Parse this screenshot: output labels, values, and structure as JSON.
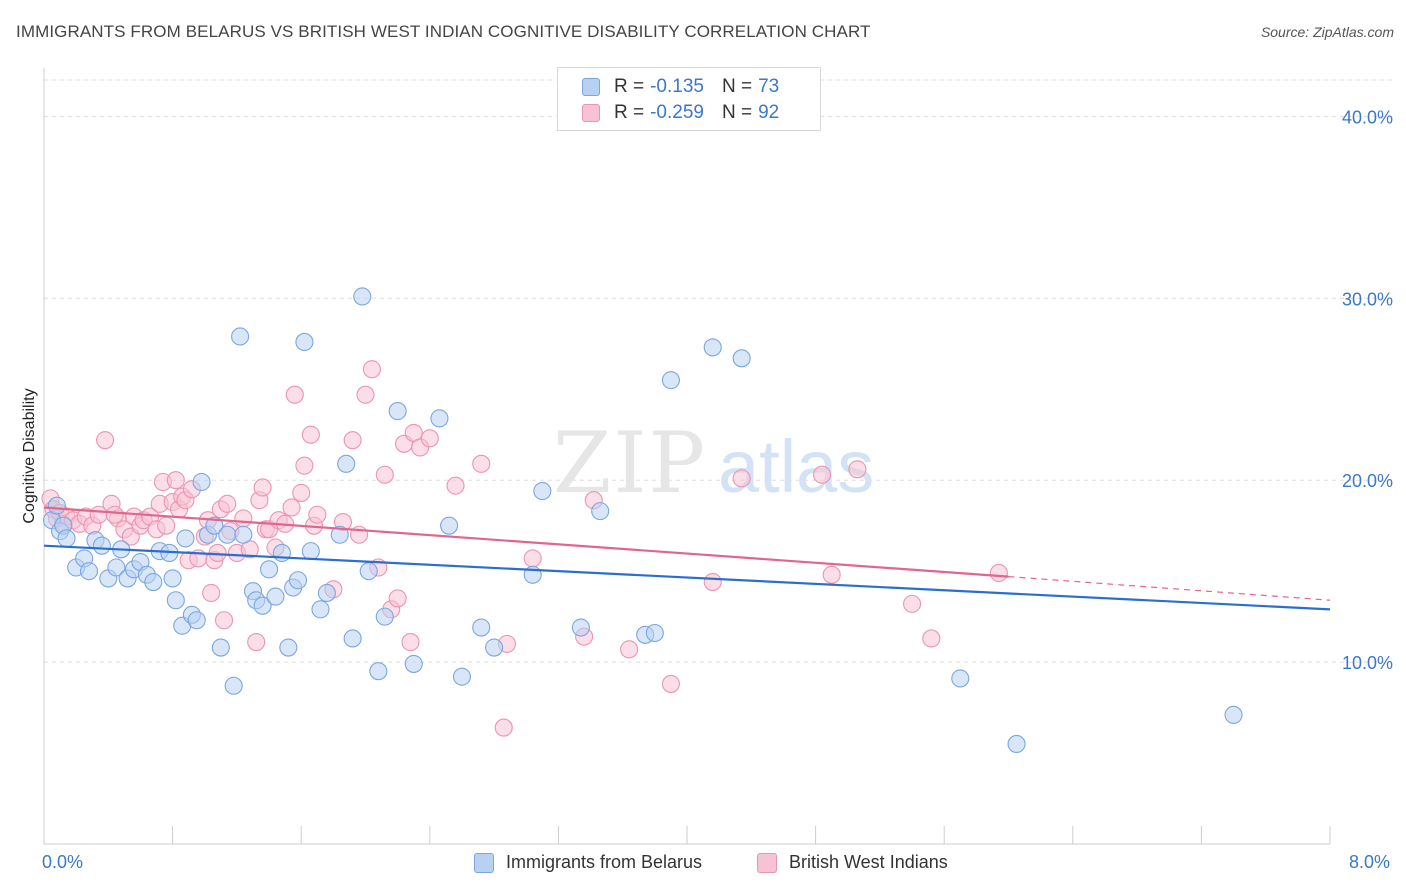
{
  "title": "IMMIGRANTS FROM BELARUS VS BRITISH WEST INDIAN COGNITIVE DISABILITY CORRELATION CHART",
  "source": "Source: ZipAtlas.com",
  "watermark": {
    "zip": "ZIP",
    "atlas": "atlas"
  },
  "colors": {
    "blue_fill": "#b8d1f3",
    "blue_stroke": "#7aa7e0",
    "blue_line": "#2a6fcf",
    "pink_fill": "#f7c3d3",
    "pink_stroke": "#ec94b1",
    "pink_line": "#e0668e",
    "grid": "#dddddd",
    "tick_text": "#3a78c9"
  },
  "legend": [
    {
      "r_label": "R =",
      "r_value": "-0.135",
      "n_label": "N =",
      "n_value": "73"
    },
    {
      "r_label": "R =",
      "r_value": "-0.259",
      "n_label": "N =",
      "n_value": "92"
    }
  ],
  "chart_data": {
    "type": "scatter",
    "title": "IMMIGRANTS FROM BELARUS VS BRITISH WEST INDIAN COGNITIVE DISABILITY CORRELATION CHART",
    "xlabel": "",
    "ylabel": "Cognitive Disability",
    "xlim": [
      0,
      8
    ],
    "ylim": [
      0,
      42
    ],
    "x_tick_labels": [
      "0.0%",
      "8.0%"
    ],
    "y_ticks": [
      10,
      20,
      30,
      40
    ],
    "y_tick_labels": [
      "10.0%",
      "20.0%",
      "30.0%",
      "40.0%"
    ],
    "grid": true,
    "legend_position": "top-center",
    "series": [
      {
        "name": "Immigrants from Belarus",
        "color": "blue",
        "r": -0.135,
        "n": 73,
        "trend": {
          "x": [
            0,
            8
          ],
          "y": [
            16.4,
            12.9
          ]
        },
        "points": [
          [
            0.05,
            17.8
          ],
          [
            0.08,
            18.6
          ],
          [
            0.1,
            17.2
          ],
          [
            0.12,
            17.5
          ],
          [
            0.14,
            16.8
          ],
          [
            0.2,
            15.2
          ],
          [
            0.25,
            15.7
          ],
          [
            0.28,
            15.0
          ],
          [
            0.32,
            16.7
          ],
          [
            0.36,
            16.4
          ],
          [
            0.4,
            14.6
          ],
          [
            0.45,
            15.2
          ],
          [
            0.48,
            16.2
          ],
          [
            0.52,
            14.6
          ],
          [
            0.56,
            15.1
          ],
          [
            0.6,
            15.5
          ],
          [
            0.64,
            14.8
          ],
          [
            0.68,
            14.4
          ],
          [
            0.72,
            16.1
          ],
          [
            0.78,
            16.0
          ],
          [
            0.8,
            14.6
          ],
          [
            0.82,
            13.4
          ],
          [
            0.86,
            12.0
          ],
          [
            0.88,
            16.8
          ],
          [
            0.92,
            12.6
          ],
          [
            0.95,
            12.3
          ],
          [
            0.98,
            19.9
          ],
          [
            1.02,
            17.0
          ],
          [
            1.06,
            17.5
          ],
          [
            1.1,
            10.8
          ],
          [
            1.14,
            17.0
          ],
          [
            1.18,
            8.7
          ],
          [
            1.22,
            27.9
          ],
          [
            1.24,
            17.0
          ],
          [
            1.3,
            13.9
          ],
          [
            1.32,
            13.4
          ],
          [
            1.36,
            13.1
          ],
          [
            1.4,
            15.1
          ],
          [
            1.44,
            13.6
          ],
          [
            1.48,
            16.0
          ],
          [
            1.52,
            10.8
          ],
          [
            1.55,
            14.1
          ],
          [
            1.58,
            14.5
          ],
          [
            1.62,
            27.6
          ],
          [
            1.66,
            16.1
          ],
          [
            1.72,
            12.9
          ],
          [
            1.76,
            13.8
          ],
          [
            1.84,
            17.0
          ],
          [
            1.88,
            20.9
          ],
          [
            1.92,
            11.3
          ],
          [
            1.98,
            30.1
          ],
          [
            2.02,
            15.0
          ],
          [
            2.08,
            9.5
          ],
          [
            2.12,
            12.5
          ],
          [
            2.2,
            23.8
          ],
          [
            2.3,
            9.9
          ],
          [
            2.46,
            23.4
          ],
          [
            2.52,
            17.5
          ],
          [
            2.6,
            9.2
          ],
          [
            2.72,
            11.9
          ],
          [
            2.8,
            10.8
          ],
          [
            3.04,
            14.8
          ],
          [
            3.1,
            19.4
          ],
          [
            3.34,
            11.9
          ],
          [
            3.46,
            18.3
          ],
          [
            3.74,
            11.5
          ],
          [
            3.8,
            11.6
          ],
          [
            3.9,
            25.5
          ],
          [
            4.16,
            27.3
          ],
          [
            4.34,
            26.7
          ],
          [
            5.7,
            9.1
          ],
          [
            6.05,
            5.5
          ],
          [
            7.4,
            7.1
          ]
        ]
      },
      {
        "name": "British West Indians",
        "color": "pink",
        "r": -0.259,
        "n": 92,
        "trend": {
          "x": [
            0,
            6
          ],
          "y": [
            18.5,
            14.7
          ]
        },
        "trend_dashed": {
          "x": [
            6,
            8
          ],
          "y": [
            14.7,
            13.4
          ]
        },
        "points": [
          [
            0.04,
            19.0
          ],
          [
            0.06,
            18.4
          ],
          [
            0.08,
            17.9
          ],
          [
            0.1,
            18.2
          ],
          [
            0.12,
            17.6
          ],
          [
            0.14,
            18.0
          ],
          [
            0.18,
            17.8
          ],
          [
            0.22,
            17.6
          ],
          [
            0.26,
            18.0
          ],
          [
            0.3,
            17.5
          ],
          [
            0.34,
            18.1
          ],
          [
            0.38,
            22.2
          ],
          [
            0.42,
            18.7
          ],
          [
            0.46,
            17.9
          ],
          [
            0.5,
            17.3
          ],
          [
            0.54,
            16.9
          ],
          [
            0.56,
            18.0
          ],
          [
            0.6,
            17.5
          ],
          [
            0.62,
            17.8
          ],
          [
            0.66,
            18.0
          ],
          [
            0.7,
            17.3
          ],
          [
            0.72,
            18.7
          ],
          [
            0.74,
            19.9
          ],
          [
            0.76,
            17.5
          ],
          [
            0.8,
            18.8
          ],
          [
            0.82,
            20.0
          ],
          [
            0.84,
            18.4
          ],
          [
            0.86,
            19.1
          ],
          [
            0.88,
            18.9
          ],
          [
            0.9,
            15.6
          ],
          [
            0.92,
            19.5
          ],
          [
            0.96,
            15.7
          ],
          [
            1.0,
            16.9
          ],
          [
            1.02,
            17.8
          ],
          [
            1.04,
            13.8
          ],
          [
            1.06,
            15.6
          ],
          [
            1.08,
            16.0
          ],
          [
            1.1,
            18.4
          ],
          [
            1.12,
            12.3
          ],
          [
            1.14,
            18.7
          ],
          [
            1.16,
            17.2
          ],
          [
            1.2,
            16.0
          ],
          [
            1.24,
            17.9
          ],
          [
            1.28,
            16.2
          ],
          [
            1.32,
            11.1
          ],
          [
            1.34,
            18.9
          ],
          [
            1.36,
            19.6
          ],
          [
            1.38,
            17.3
          ],
          [
            1.4,
            17.3
          ],
          [
            1.44,
            16.3
          ],
          [
            1.46,
            17.8
          ],
          [
            1.5,
            17.6
          ],
          [
            1.54,
            18.5
          ],
          [
            1.56,
            24.7
          ],
          [
            1.6,
            19.3
          ],
          [
            1.62,
            20.8
          ],
          [
            1.66,
            22.5
          ],
          [
            1.68,
            17.5
          ],
          [
            1.7,
            18.1
          ],
          [
            1.8,
            14.0
          ],
          [
            1.86,
            17.7
          ],
          [
            1.92,
            22.2
          ],
          [
            1.96,
            17.0
          ],
          [
            2.0,
            24.7
          ],
          [
            2.04,
            26.1
          ],
          [
            2.08,
            15.2
          ],
          [
            2.12,
            20.3
          ],
          [
            2.16,
            12.9
          ],
          [
            2.2,
            13.5
          ],
          [
            2.24,
            22.0
          ],
          [
            2.28,
            11.1
          ],
          [
            2.3,
            22.6
          ],
          [
            2.34,
            21.8
          ],
          [
            2.4,
            22.3
          ],
          [
            2.56,
            19.7
          ],
          [
            2.72,
            20.9
          ],
          [
            2.86,
            6.4
          ],
          [
            2.88,
            11.0
          ],
          [
            3.04,
            15.7
          ],
          [
            3.36,
            11.4
          ],
          [
            3.42,
            18.9
          ],
          [
            3.64,
            10.7
          ],
          [
            3.9,
            8.8
          ],
          [
            4.16,
            14.4
          ],
          [
            4.34,
            20.1
          ],
          [
            4.84,
            20.3
          ],
          [
            4.9,
            14.8
          ],
          [
            5.06,
            20.6
          ],
          [
            5.4,
            13.2
          ],
          [
            5.52,
            11.3
          ],
          [
            5.94,
            14.9
          ],
          [
            0.44,
            18.1
          ]
        ]
      }
    ]
  },
  "bottom_legend": [
    {
      "label": "Immigrants from Belarus"
    },
    {
      "label": "British West Indians"
    }
  ]
}
